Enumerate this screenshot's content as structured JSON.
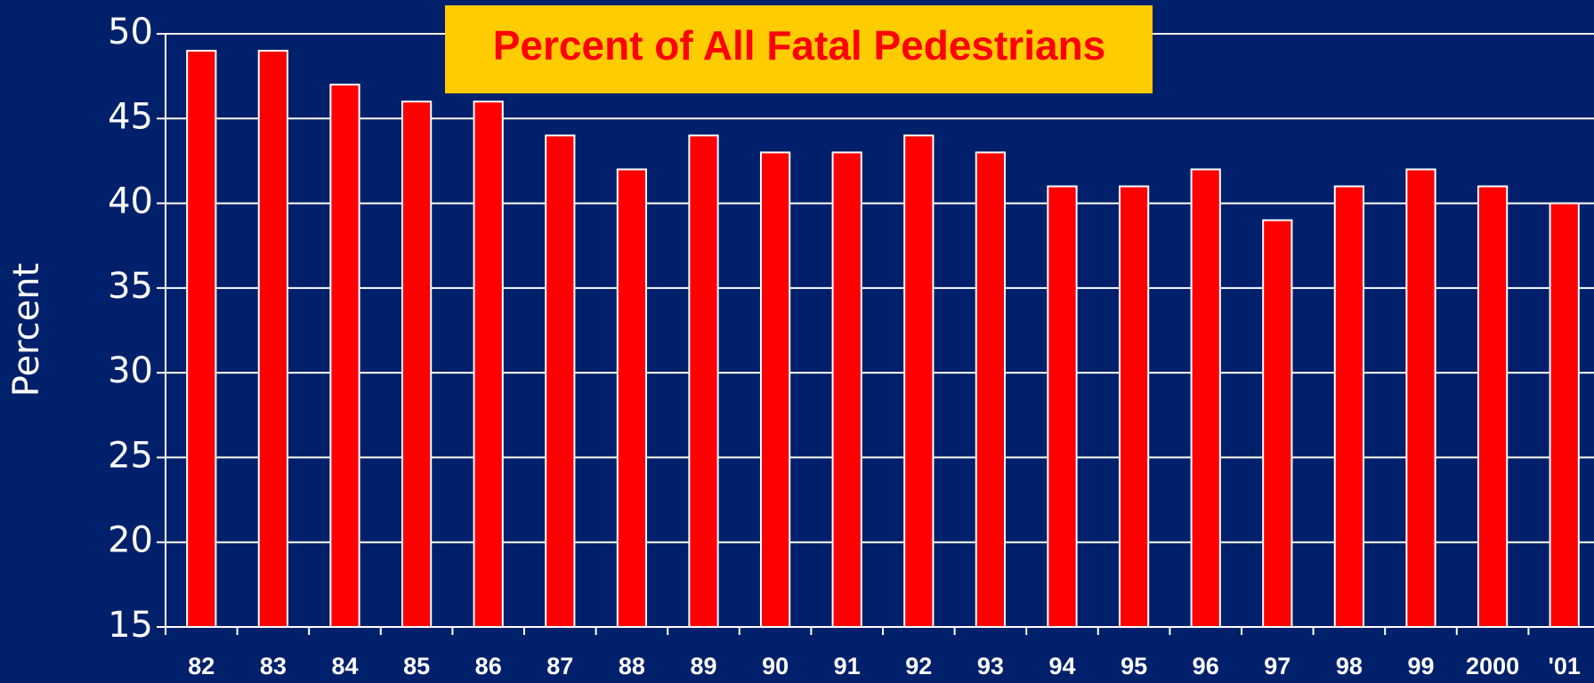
{
  "chart_data": {
    "type": "bar",
    "title": "Percent of All Fatal Pedestrians",
    "y_label": "Percent",
    "categories": [
      "82",
      "83",
      "84",
      "85",
      "86",
      "87",
      "88",
      "89",
      "90",
      "91",
      "92",
      "93",
      "94",
      "95",
      "96",
      "97",
      "98",
      "99",
      "2000",
      "'01"
    ],
    "values": [
      49,
      49,
      47,
      46,
      46,
      44,
      42,
      44,
      43,
      43,
      44,
      43,
      41,
      41,
      42,
      39,
      41,
      42,
      41,
      40
    ],
    "color": "#ff0000",
    "ylim": [
      15,
      50
    ],
    "yticks": [
      15,
      20,
      25,
      30,
      35,
      40,
      45,
      50
    ],
    "grid": true
  }
}
